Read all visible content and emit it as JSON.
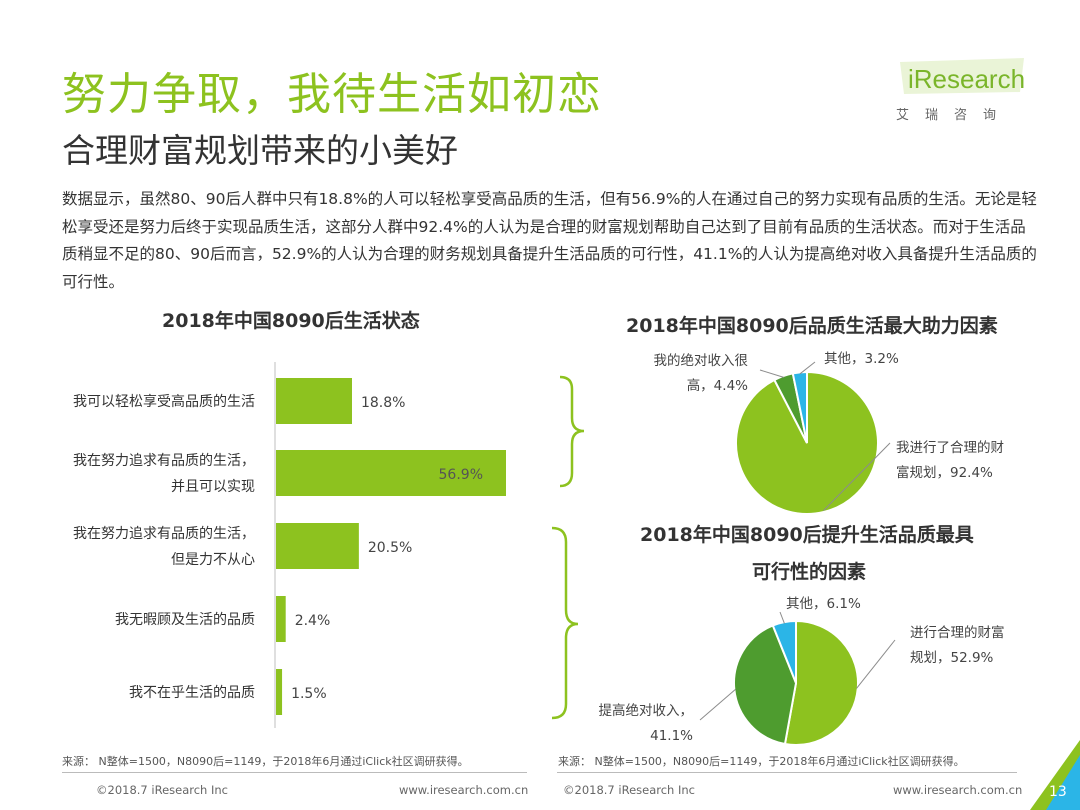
{
  "header": {
    "title": "努力争取，我待生活如初恋",
    "subtitle": "合理财富规划带来的小美好"
  },
  "logo": {
    "brand": "iResearch",
    "brand_cn": "艾瑞咨询"
  },
  "description": "数据显示，虽然80、90后人群中只有18.8%的人可以轻松享受高品质的生活，但有56.9%的人在通过自己的努力实现有品质的生活。无论是轻松享受还是努力后终于实现品质生活，这部分人群中92.4%的人认为是合理的财富规划帮助自己达到了目前有品质的生活状态。而对于生活品质稍显不足的80、90后而言，52.9%的人认为合理的财务规划具备提升生活品质的可行性，41.1%的人认为提高绝对收入具备提升生活品质的可行性。",
  "colors": {
    "accent": "#8dc21f",
    "dark_green": "#4e9c2f",
    "blue": "#2bb5e7",
    "brace": "#8dc21f"
  },
  "chart_data": [
    {
      "type": "bar",
      "orientation": "horizontal",
      "title": "2018年中国8090后生活状态",
      "categories": [
        [
          "我可以轻松享受高品质的生活"
        ],
        [
          "我在努力追求有品质的生活，",
          "并且可以实现"
        ],
        [
          "我在努力追求有品质的生活，",
          "但是力不从心"
        ],
        [
          "我无暇顾及生活的品质"
        ],
        [
          "我不在乎生活的品质"
        ]
      ],
      "values": [
        18.8,
        56.9,
        20.5,
        2.4,
        1.5
      ],
      "value_labels": [
        "18.8%",
        "56.9%",
        "20.5%",
        "2.4%",
        "1.5%"
      ],
      "xlim": [
        0,
        60
      ],
      "color": "#8dc21f"
    },
    {
      "type": "pie",
      "title": "2018年中国8090后品质生活最大助力因素",
      "slices": [
        {
          "label": [
            "我进行了合理的财",
            "富规划，92.4%"
          ],
          "value": 92.4,
          "color": "#8dc21f"
        },
        {
          "label": [
            "我的绝对收入很",
            "高，4.4%"
          ],
          "value": 4.4,
          "color": "#4e9c2f"
        },
        {
          "label": [
            "其他，3.2%"
          ],
          "value": 3.2,
          "color": "#2bb5e7"
        }
      ]
    },
    {
      "type": "pie",
      "title": [
        "2018年中国8090后提升生活品质最具",
        "可行性的因素"
      ],
      "slices": [
        {
          "label": [
            "进行合理的财富",
            "规划，52.9%"
          ],
          "value": 52.9,
          "color": "#8dc21f"
        },
        {
          "label": [
            "提高绝对收入，",
            "41.1%"
          ],
          "value": 41.1,
          "color": "#4e9c2f"
        },
        {
          "label": [
            "其他，6.1%"
          ],
          "value": 6.1,
          "color": "#2bb5e7"
        }
      ]
    }
  ],
  "source": {
    "left": "来源：  N整体=1500，N8090后=1149，于2018年6月通过iClick社区调研获得。",
    "right": "来源：  N整体=1500，N8090后=1149，于2018年6月通过iClick社区调研获得。"
  },
  "footer": {
    "left_company": "©2018.7 iResearch Inc",
    "left_url": "www.iresearch.com.cn",
    "right_company": "©2018.7 iResearch Inc",
    "right_url": "www.iresearch.com.cn",
    "page_number": "13"
  }
}
